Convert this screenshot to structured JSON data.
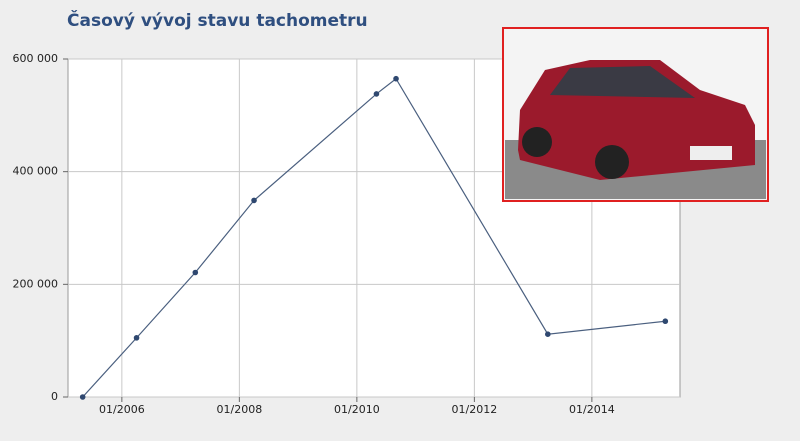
{
  "chart_data": {
    "type": "line",
    "title": "Časový vývoj stavu tachometru",
    "x": [
      "2005-05",
      "2006-04",
      "2007-04",
      "2008-04",
      "2010-05",
      "2010-09",
      "2013-04",
      "2015-04"
    ],
    "series": [
      {
        "color": "#4a5f7f",
        "values": [
          0,
          105000,
          221000,
          349000,
          538000,
          565000,
          111500,
          134500
        ]
      }
    ],
    "xlim": [
      "2005-02",
      "2015-07"
    ],
    "xticks": [
      {
        "value": "2006-01",
        "label": "01/2006"
      },
      {
        "value": "2008-01",
        "label": "01/2008"
      },
      {
        "value": "2010-01",
        "label": "01/2010"
      },
      {
        "value": "2012-01",
        "label": "01/2012"
      },
      {
        "value": "2014-01",
        "label": "01/2014"
      }
    ],
    "ylim": [
      0,
      600000
    ],
    "yticks": [
      0,
      {
        "value": 200000,
        "label": "200 000"
      },
      {
        "value": 400000,
        "label": "400 000"
      },
      {
        "value": 600000,
        "label": "600 000"
      }
    ],
    "grid": true
  }
}
